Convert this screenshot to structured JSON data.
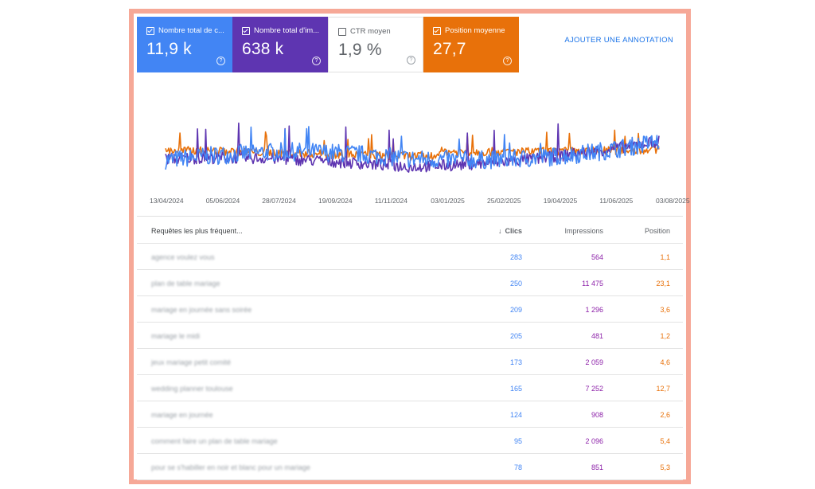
{
  "metrics": [
    {
      "label": "Nombre total de c...",
      "value": "11,9 k",
      "checked": true,
      "color": "#4285f4"
    },
    {
      "label": "Nombre total d'im...",
      "value": "638 k",
      "checked": true,
      "color": "#5e35b1"
    },
    {
      "label": "CTR moyen",
      "value": "1,9 %",
      "checked": false,
      "color": "#ffffff"
    },
    {
      "label": "Position moyenne",
      "value": "27,7",
      "checked": true,
      "color": "#e8710a"
    }
  ],
  "annotation_button": "AJOUTER UNE ANNOTATION",
  "chart_data": {
    "type": "line",
    "x_tick_labels": [
      "13/04/2024",
      "05/06/2024",
      "28/07/2024",
      "19/09/2024",
      "11/11/2024",
      "03/01/2025",
      "25/02/2025",
      "19/04/2025",
      "11/06/2025",
      "03/08/2025"
    ],
    "series": [
      {
        "color": "#4285f4"
      },
      {
        "color": "#5e35b1"
      },
      {
        "color": "#e8710a"
      }
    ],
    "grid": false
  },
  "table": {
    "headers": {
      "query": "Requêtes les plus fréquent...",
      "clicks": "Clics",
      "impressions": "Impressions",
      "position": "Position"
    },
    "rows": [
      {
        "query": "agence voulez vous",
        "clicks": "283",
        "impressions": "564",
        "position": "1,1"
      },
      {
        "query": "plan de table mariage",
        "clicks": "250",
        "impressions": "11 475",
        "position": "23,1"
      },
      {
        "query": "mariage en journée sans soirée",
        "clicks": "209",
        "impressions": "1 296",
        "position": "3,6"
      },
      {
        "query": "mariage le midi",
        "clicks": "205",
        "impressions": "481",
        "position": "1,2"
      },
      {
        "query": "jeux mariage petit comité",
        "clicks": "173",
        "impressions": "2 059",
        "position": "4,6"
      },
      {
        "query": "wedding planner toulouse",
        "clicks": "165",
        "impressions": "7 252",
        "position": "12,7"
      },
      {
        "query": "mariage en journée",
        "clicks": "124",
        "impressions": "908",
        "position": "2,6"
      },
      {
        "query": "comment faire un plan de table mariage",
        "clicks": "95",
        "impressions": "2 096",
        "position": "5,4"
      },
      {
        "query": "pour se s'habiller en noir et blanc pour un mariage",
        "clicks": "78",
        "impressions": "851",
        "position": "5,3"
      }
    ]
  }
}
